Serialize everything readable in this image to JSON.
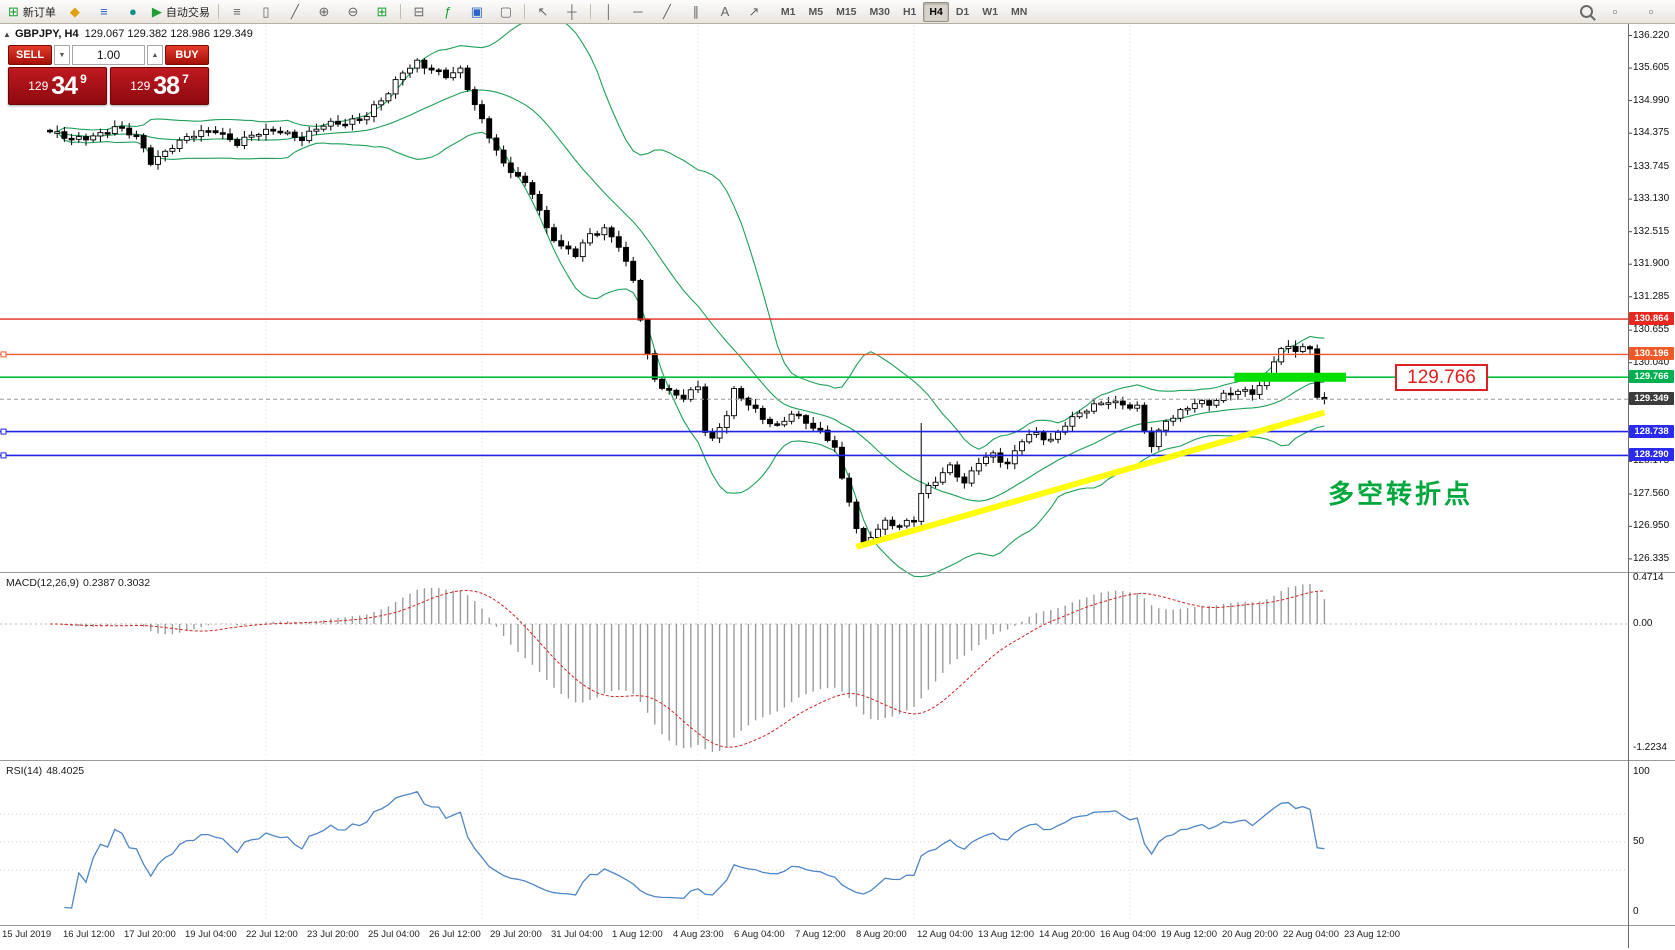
{
  "toolbar": {
    "new_order": "新订单",
    "auto_trading": "自动交易",
    "timeframes": [
      "M1",
      "M5",
      "M15",
      "M30",
      "H1",
      "H4",
      "D1",
      "W1",
      "MN"
    ],
    "active_timeframe": "H4"
  },
  "icons": {
    "new_order": "⊞",
    "tip": "◆",
    "chart_window": "≡",
    "community": "●",
    "auto_trading_play": "▶",
    "bar_chart": "≡",
    "candle_chart": "▯",
    "line_chart": "╱",
    "zoom_in": "⊕",
    "zoom_out": "⊖",
    "tile_windows": "⊞",
    "arrange": "⊟",
    "indicators": "ƒ",
    "periods": "▣",
    "templates": "▢",
    "cursor": "↖",
    "crosshair": "┼",
    "vertical_line": "│",
    "horizontal_line": "─",
    "trend_line": "╱",
    "channel": "∥",
    "text": "A",
    "arrows": "↗",
    "window_small": "▫"
  },
  "symbol_bar": {
    "symbol": "GBPJPY, H4",
    "ohlc": "129.067 129.382 128.986 129.349"
  },
  "trade_panel": {
    "sell": "SELL",
    "buy": "BUY",
    "lot": "1.00",
    "sell_price": {
      "prefix": "129",
      "big": "34",
      "sup": "9"
    },
    "buy_price": {
      "prefix": "129",
      "big": "38",
      "sup": "7"
    }
  },
  "annotations": {
    "price_box": "129.766",
    "turning_point": "多空转折点"
  },
  "chart_data": {
    "type": "candlestick",
    "symbol": "GBPJPY",
    "timeframe": "H4",
    "ohlc_display": {
      "open": "129.067",
      "high": "129.382",
      "low": "128.986",
      "close": "129.349"
    },
    "price_axis_ticks": [
      "136.220",
      "135.605",
      "134.990",
      "134.375",
      "133.745",
      "133.130",
      "132.515",
      "131.900",
      "131.285",
      "130.655",
      "130.040",
      "128.175",
      "127.560",
      "126.950",
      "126.335"
    ],
    "price_tags": [
      {
        "value": "130.864",
        "bg": "#e8281e"
      },
      {
        "value": "130.196",
        "bg": "#f05a28"
      },
      {
        "value": "129.766",
        "bg": "#00b050"
      },
      {
        "value": "129.349",
        "bg": "#3c3c3c"
      },
      {
        "value": "128.738",
        "bg": "#2a2af0"
      },
      {
        "value": "128.290",
        "bg": "#2a2af0"
      }
    ],
    "horizontal_lines": [
      {
        "price": 130.864,
        "color": "#e8281e",
        "width": 1.4,
        "dash": ""
      },
      {
        "price": 130.196,
        "color": "#f05a28",
        "width": 1.4,
        "dash": ""
      },
      {
        "price": 129.766,
        "color": "#00c040",
        "width": 1.6,
        "dash": ""
      },
      {
        "price": 129.349,
        "color": "#9a9a9a",
        "width": 1,
        "dash": "4,3"
      },
      {
        "price": 128.738,
        "color": "#2323e8",
        "width": 1.6,
        "dash": ""
      },
      {
        "price": 128.29,
        "color": "#2323e8",
        "width": 1.6,
        "dash": ""
      }
    ],
    "trend_line": {
      "i1": 112,
      "p1": 126.56,
      "i2": 177,
      "p2": 129.1,
      "color": "#ffff00",
      "width": 6
    },
    "green_segment": {
      "price": 129.766,
      "i1": 164.5,
      "i2": 180,
      "color": "#00dd00",
      "width": 9
    },
    "bollinger": {
      "period": 20,
      "deviation": 2,
      "color": "#1fa05a"
    },
    "candles": {
      "count": 178,
      "long_wick_index": 121,
      "long_wick_high": 128.9,
      "anchors": [
        [
          0,
          134.4
        ],
        [
          3,
          134.22
        ],
        [
          6,
          134.35
        ],
        [
          9,
          134.48
        ],
        [
          12,
          134.28
        ],
        [
          14,
          133.85
        ],
        [
          17,
          134.15
        ],
        [
          20,
          134.32
        ],
        [
          23,
          134.45
        ],
        [
          26,
          134.2
        ],
        [
          29,
          134.35
        ],
        [
          32,
          134.45
        ],
        [
          35,
          134.28
        ],
        [
          38,
          134.5
        ],
        [
          41,
          134.6
        ],
        [
          44,
          134.72
        ],
        [
          47,
          135.1
        ],
        [
          49,
          135.55
        ],
        [
          51,
          135.75
        ],
        [
          53,
          135.58
        ],
        [
          55,
          135.42
        ],
        [
          57,
          135.55
        ],
        [
          59,
          134.95
        ],
        [
          61,
          134.35
        ],
        [
          63,
          133.75
        ],
        [
          65,
          133.52
        ],
        [
          67,
          133.28
        ],
        [
          69,
          132.6
        ],
        [
          71,
          132.22
        ],
        [
          73,
          132.05
        ],
        [
          75,
          132.45
        ],
        [
          77,
          132.6
        ],
        [
          79,
          132.28
        ],
        [
          81,
          131.55
        ],
        [
          83,
          130.15
        ],
        [
          84,
          129.72
        ],
        [
          86,
          129.52
        ],
        [
          88,
          129.4
        ],
        [
          90,
          129.55
        ],
        [
          91,
          128.72
        ],
        [
          92,
          128.55
        ],
        [
          94,
          129.1
        ],
        [
          95,
          129.55
        ],
        [
          97,
          129.28
        ],
        [
          99,
          128.95
        ],
        [
          101,
          128.8
        ],
        [
          103,
          129.12
        ],
        [
          105,
          128.95
        ],
        [
          107,
          128.7
        ],
        [
          109,
          128.42
        ],
        [
          110,
          127.8
        ],
        [
          111,
          127.45
        ],
        [
          112,
          126.95
        ],
        [
          113,
          126.65
        ],
        [
          114,
          126.8
        ],
        [
          116,
          127.0
        ],
        [
          118,
          126.92
        ],
        [
          120,
          127.1
        ],
        [
          121,
          127.6
        ],
        [
          123,
          127.85
        ],
        [
          125,
          128.05
        ],
        [
          127,
          127.72
        ],
        [
          129,
          128.2
        ],
        [
          131,
          128.35
        ],
        [
          133,
          128.1
        ],
        [
          135,
          128.55
        ],
        [
          137,
          128.7
        ],
        [
          139,
          128.6
        ],
        [
          141,
          128.9
        ],
        [
          143,
          129.05
        ],
        [
          145,
          129.2
        ],
        [
          147,
          129.35
        ],
        [
          149,
          129.28
        ],
        [
          151,
          129.18
        ],
        [
          152,
          128.72
        ],
        [
          153,
          128.45
        ],
        [
          155,
          128.95
        ],
        [
          157,
          129.15
        ],
        [
          159,
          129.3
        ],
        [
          161,
          129.22
        ],
        [
          163,
          129.4
        ],
        [
          165,
          129.55
        ],
        [
          167,
          129.5
        ],
        [
          169,
          129.75
        ],
        [
          170,
          130.05
        ],
        [
          171,
          130.28
        ],
        [
          173,
          130.3
        ],
        [
          174,
          130.38
        ],
        [
          175,
          130.3
        ],
        [
          176,
          129.45
        ],
        [
          177,
          129.35
        ]
      ]
    },
    "time_labels": [
      "15 Jul 2019",
      "16 Jul 12:00",
      "17 Jul 20:00",
      "19 Jul 04:00",
      "22 Jul 12:00",
      "23 Jul 20:00",
      "25 Jul 04:00",
      "26 Jul 12:00",
      "29 Jul 20:00",
      "31 Jul 04:00",
      "1 Aug 12:00",
      "4 Aug 23:00",
      "6 Aug 04:00",
      "7 Aug 12:00",
      "8 Aug 20:00",
      "12 Aug 04:00",
      "13 Aug 12:00",
      "14 Aug 20:00",
      "16 Aug 04:00",
      "19 Aug 12:00",
      "20 Aug 20:00",
      "22 Aug 04:00",
      "23 Aug 12:00"
    ],
    "macd": {
      "label": "MACD(12,26,9)",
      "current": "0.2387 0.3032",
      "fast": 12,
      "slow": 26,
      "signal": 9,
      "axis_top": "0.4714",
      "axis_zero": "0.00",
      "axis_bottom": "-1.2234"
    },
    "rsi": {
      "label": "RSI(14)",
      "current": "48.4025",
      "period": 14,
      "axis": [
        "100",
        "50",
        "0"
      ]
    }
  }
}
